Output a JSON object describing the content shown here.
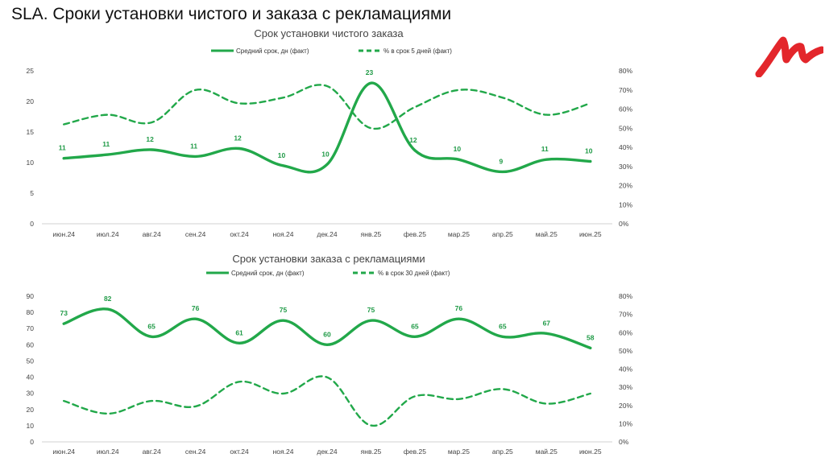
{
  "page": {
    "title": "SLA. Сроки установки чистого и заказа с рекламациями"
  },
  "logo": {
    "color": "#e3262b"
  },
  "colors": {
    "series": "#22a84a",
    "label": "#1f9a46",
    "axis": "#d0d0d0"
  },
  "chart_data": [
    {
      "type": "line",
      "title": "Срок установки чистого заказа",
      "categories": [
        "июн.24",
        "июл.24",
        "авг.24",
        "сен.24",
        "окт.24",
        "ноя.24",
        "дек.24",
        "янв.25",
        "фев.25",
        "мар.25",
        "апр.25",
        "май.25",
        "июн.25"
      ],
      "y_ticks": [
        "0",
        "5",
        "10",
        "15",
        "20",
        "25"
      ],
      "ylim": [
        0,
        25
      ],
      "y2_ticks": [
        "0%",
        "10%",
        "20%",
        "30%",
        "40%",
        "50%",
        "60%",
        "70%",
        "80%"
      ],
      "y2lim": [
        0,
        0.8
      ],
      "series": [
        {
          "name": "Средний срок, дн (факт)",
          "axis": "left",
          "style": "solid",
          "values": [
            10.7,
            11.3,
            12.1,
            11.0,
            12.3,
            9.5,
            9.7,
            23.0,
            12.0,
            10.5,
            8.5,
            10.5,
            10.2
          ],
          "labels": [
            "11",
            "11",
            "12",
            "11",
            "12",
            "10",
            "10",
            "23",
            "12",
            "10",
            "9",
            "11",
            "10"
          ]
        },
        {
          "name": "% в срок 5 дней (факт)",
          "axis": "right",
          "style": "dashed",
          "values": [
            0.52,
            0.57,
            0.53,
            0.7,
            0.63,
            0.66,
            0.72,
            0.5,
            0.61,
            0.7,
            0.66,
            0.57,
            0.63
          ]
        }
      ]
    },
    {
      "type": "line",
      "title": "Срок установки заказа с рекламациями",
      "categories": [
        "июн.24",
        "июл.24",
        "авг.24",
        "сен.24",
        "окт.24",
        "ноя.24",
        "дек.24",
        "янв.25",
        "фев.25",
        "мар.25",
        "апр.25",
        "май.25",
        "июн.25"
      ],
      "y_ticks": [
        "0",
        "10",
        "20",
        "30",
        "40",
        "50",
        "60",
        "70",
        "80",
        "90"
      ],
      "ylim": [
        0,
        90
      ],
      "y2_ticks": [
        "0%",
        "10%",
        "20%",
        "30%",
        "40%",
        "50%",
        "60%",
        "70%",
        "80%"
      ],
      "y2lim": [
        0,
        0.8
      ],
      "series": [
        {
          "name": "Средний срок, дн (факт)",
          "axis": "left",
          "style": "solid",
          "values": [
            73,
            82,
            65,
            76,
            61,
            75,
            60,
            75,
            65,
            76,
            65,
            67,
            58
          ],
          "labels": [
            "73",
            "82",
            "65",
            "76",
            "61",
            "75",
            "60",
            "75",
            "65",
            "76",
            "65",
            "67",
            "58"
          ]
        },
        {
          "name": "% в срок 30 дней (факт)",
          "axis": "right",
          "style": "dashed",
          "values": [
            0.225,
            0.155,
            0.225,
            0.195,
            0.33,
            0.265,
            0.355,
            0.09,
            0.25,
            0.235,
            0.29,
            0.21,
            0.265
          ]
        }
      ]
    }
  ]
}
